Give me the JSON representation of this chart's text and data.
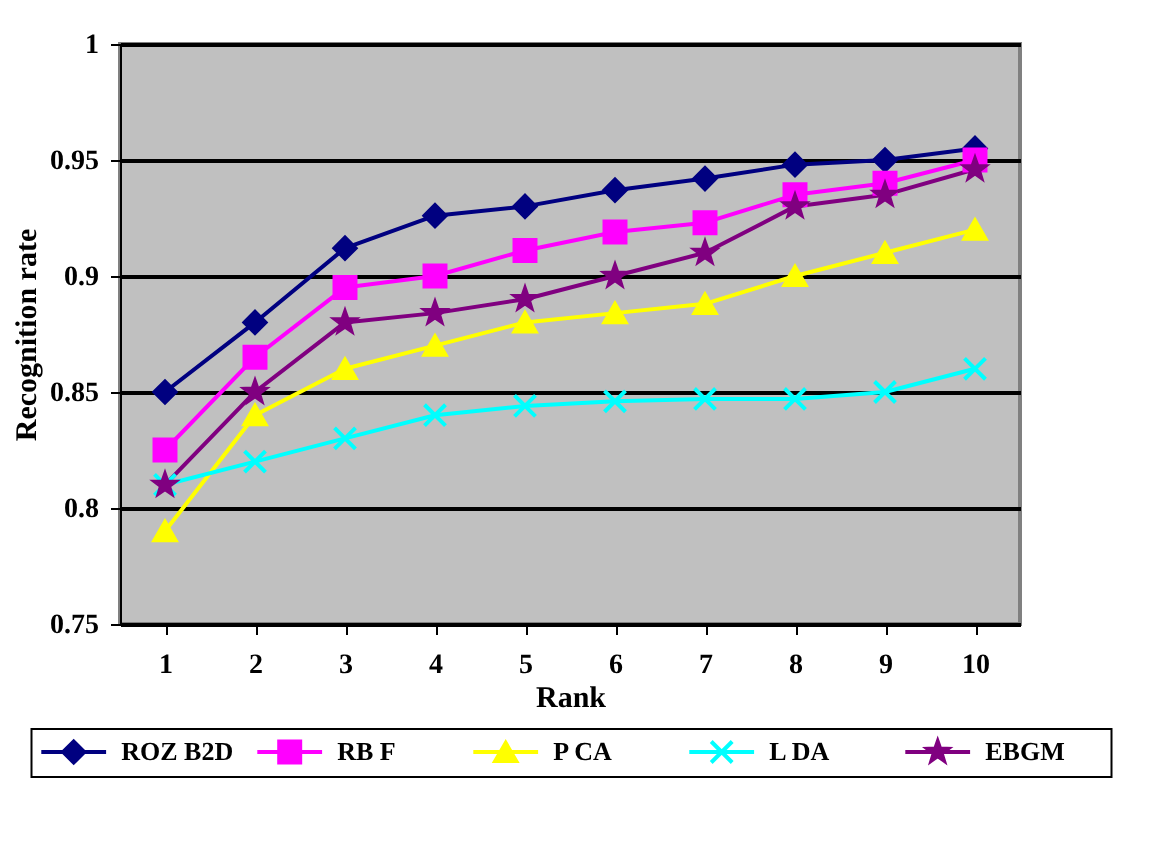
{
  "chart_data": {
    "type": "line",
    "xlabel": "Rank",
    "ylabel": "Recognition rate",
    "categories": [
      "1",
      "2",
      "3",
      "4",
      "5",
      "6",
      "7",
      "8",
      "9",
      "10"
    ],
    "ylim": [
      0.75,
      1
    ],
    "yticks": [
      0.75,
      0.8,
      0.85,
      0.9,
      0.95,
      1
    ],
    "grid": "y",
    "legend": "bottom",
    "line_style": "solid",
    "series": [
      {
        "name": "ROZ B2D",
        "color": "#000080",
        "marker": "diamond",
        "values": [
          0.85,
          0.88,
          0.912,
          0.926,
          0.93,
          0.937,
          0.942,
          0.948,
          0.95,
          0.955
        ]
      },
      {
        "name": "RB F",
        "color": "#ff00ff",
        "marker": "square",
        "values": [
          0.825,
          0.865,
          0.895,
          0.9,
          0.911,
          0.919,
          0.923,
          0.935,
          0.94,
          0.95
        ]
      },
      {
        "name": "P CA",
        "color": "#ffff00",
        "marker": "triangle",
        "values": [
          0.79,
          0.84,
          0.86,
          0.87,
          0.88,
          0.884,
          0.888,
          0.9,
          0.91,
          0.92
        ]
      },
      {
        "name": "L DA",
        "color": "#00ffff",
        "marker": "cross",
        "values": [
          0.81,
          0.82,
          0.83,
          0.84,
          0.844,
          0.846,
          0.847,
          0.847,
          0.85,
          0.86
        ]
      },
      {
        "name": "EBGM",
        "color": "#800080",
        "marker": "star",
        "values": [
          0.81,
          0.85,
          0.88,
          0.884,
          0.89,
          0.9,
          0.91,
          0.93,
          0.935,
          0.946
        ]
      }
    ]
  }
}
